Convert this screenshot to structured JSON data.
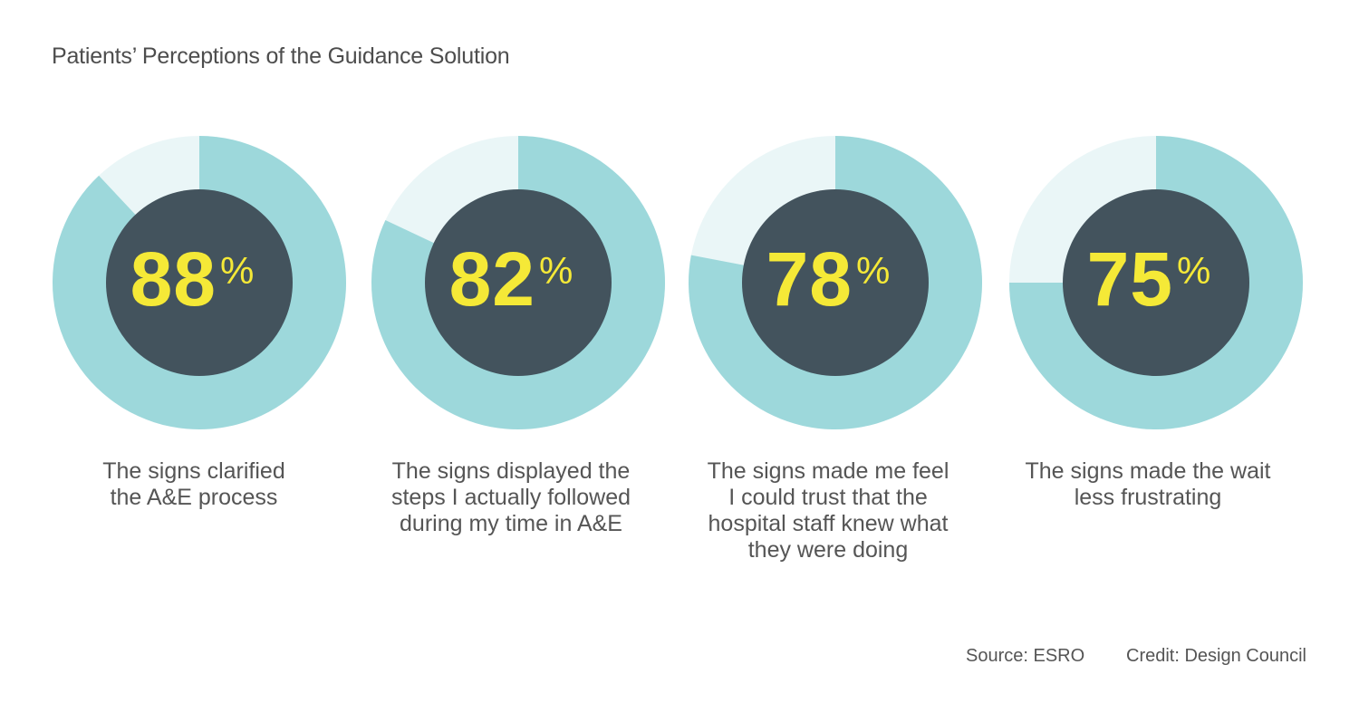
{
  "chart_data": {
    "type": "pie",
    "title": "Patients’  Perceptions of the Guidance Solution",
    "percent_symbol": "%",
    "items": [
      {
        "value": 88,
        "label": "The signs clarified\nthe A&E process"
      },
      {
        "value": 82,
        "label": "The signs displayed the\nsteps I actually followed\nduring my time in A&E"
      },
      {
        "value": 78,
        "label": "The signs made me feel\nI could trust that the\nhospital staff knew what\nthey were doing"
      },
      {
        "value": 75,
        "label": "The signs made the wait\nless frustrating"
      }
    ],
    "colors": {
      "filled": "#9dd8db",
      "remaining": "#eaf6f7",
      "center": "#43535d",
      "value_text": "#f5e937"
    }
  },
  "footer": {
    "source": "Source: ESRO",
    "credit": "Credit: Design Council"
  }
}
